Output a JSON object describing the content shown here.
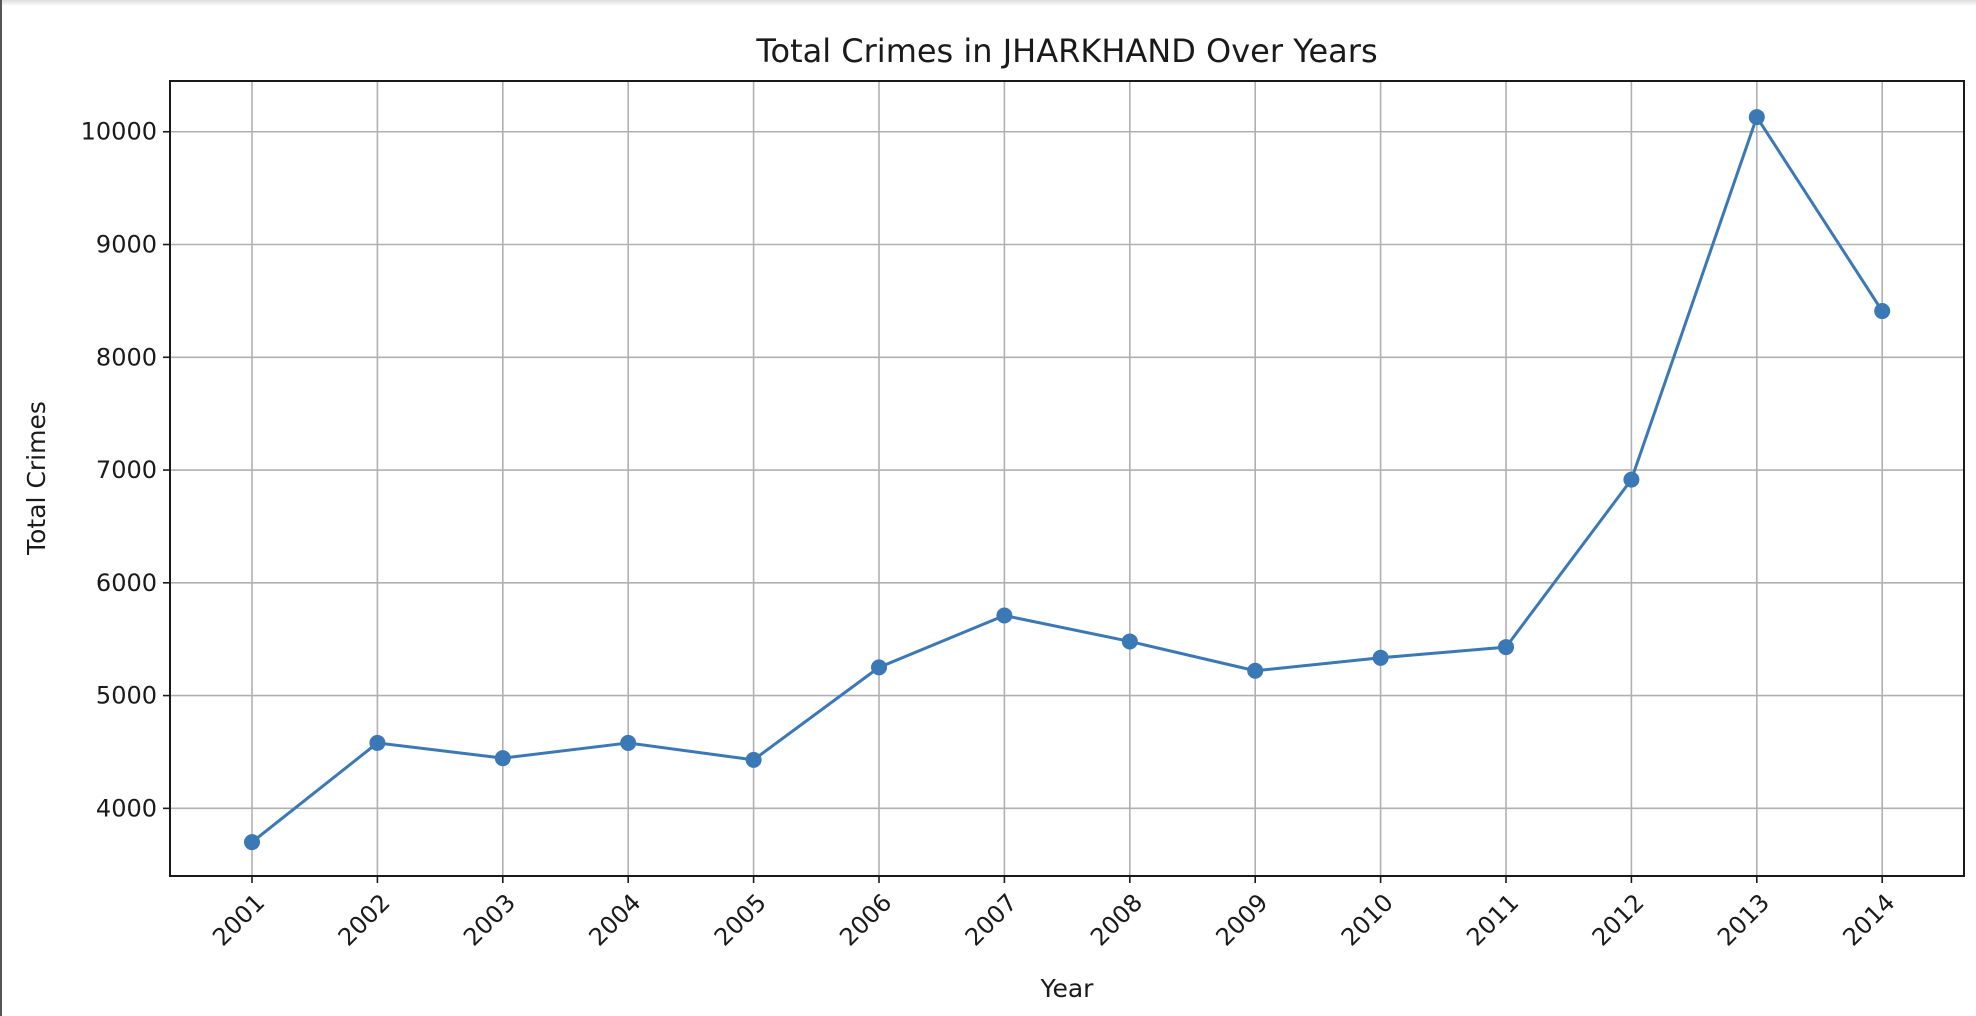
{
  "chart_data": {
    "type": "line",
    "title": "Total Crimes in JHARKHAND Over Years",
    "xlabel": "Year",
    "ylabel": "Total Crimes",
    "categories": [
      "2001",
      "2002",
      "2003",
      "2004",
      "2005",
      "2006",
      "2007",
      "2008",
      "2009",
      "2010",
      "2011",
      "2012",
      "2013",
      "2014"
    ],
    "series": [
      {
        "values": [
          3700,
          4580,
          4445,
          4580,
          4430,
          5250,
          5710,
          5480,
          5220,
          5335,
          5430,
          6915,
          10130,
          8410
        ]
      }
    ],
    "yticks": [
      "4000",
      "5000",
      "6000",
      "7000",
      "8000",
      "9000",
      "10000"
    ],
    "ylim": [
      3400,
      10450
    ],
    "grid": true,
    "legend": "none",
    "line_color": "#3a78b6",
    "marker": "circle",
    "x_tick_rotation_deg": 45
  }
}
